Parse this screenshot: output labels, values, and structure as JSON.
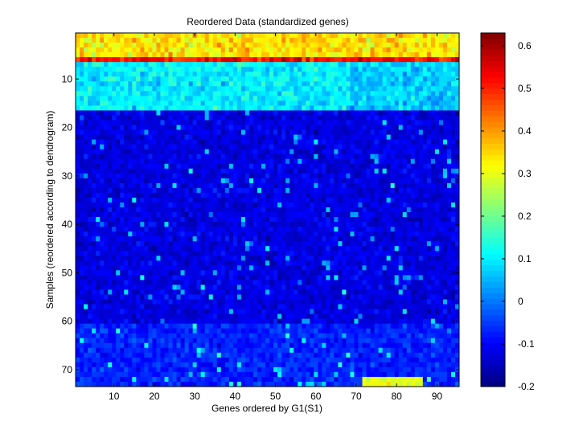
{
  "chart_data": {
    "type": "heatmap",
    "title": "Reordered Data (standardized genes)",
    "xlabel": "Genes ordered by G1(S1)",
    "ylabel": "Samples (reordered according to dendrogram)",
    "n_cols": 95,
    "n_rows": 73,
    "xlim": [
      0.5,
      95.5
    ],
    "ylim": [
      0.5,
      73.5
    ],
    "y_direction": "reverse",
    "x_ticks": [
      10,
      20,
      30,
      40,
      50,
      60,
      70,
      80,
      90
    ],
    "y_ticks": [
      10,
      20,
      30,
      40,
      50,
      60,
      70
    ],
    "colormap": "jet",
    "colorbar": {
      "range": [
        -0.2,
        0.63
      ],
      "ticks": [
        -0.2,
        -0.1,
        0,
        0.1,
        0.2,
        0.3,
        0.4,
        0.5,
        0.6
      ],
      "tick_labels": [
        "-0.2",
        "-0.1",
        "0",
        "0.1",
        "0.2",
        "0.3",
        "0.4",
        "0.5",
        "0.6"
      ]
    },
    "row_band_levels": [
      {
        "rows": [
          1,
          5
        ],
        "level": 0.34
      },
      {
        "rows": [
          6,
          6
        ],
        "level": 0.52
      },
      {
        "rows": [
          7,
          16
        ],
        "level": 0.1
      },
      {
        "rows": [
          17,
          60
        ],
        "level": -0.12
      },
      {
        "rows": [
          61,
          73
        ],
        "level": -0.07
      }
    ],
    "highlight_regions": [
      {
        "rows": [
          72,
          73
        ],
        "cols": [
          72,
          86
        ],
        "level": 0.3
      }
    ]
  }
}
